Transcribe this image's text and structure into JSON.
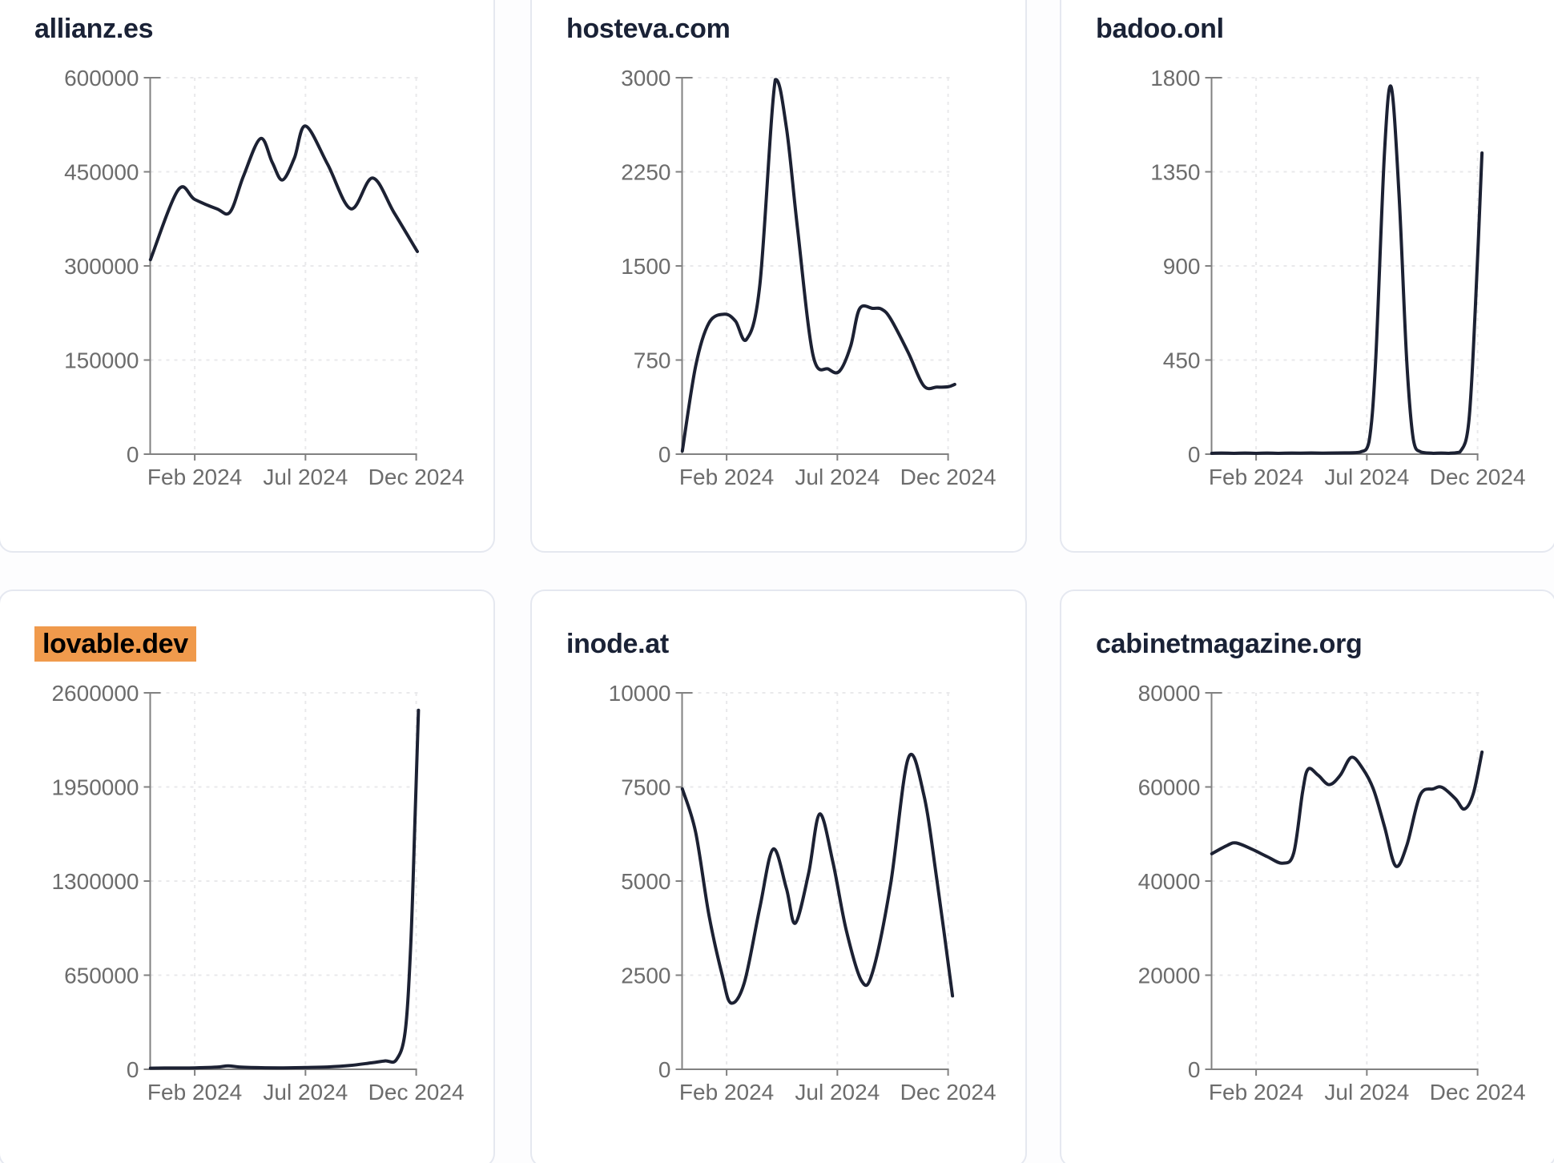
{
  "page": {
    "x_axis_tick_labels": [
      "Feb 2024",
      "Jul 2024",
      "Dec 2024"
    ],
    "x_domain_note": "months: 0 = curve start (late Dec 2023), 2 = Feb 2024 tick, 7 = Jul 2024 tick, 12 = Dec 2024 tick"
  },
  "colors": {
    "page_background": "#fdfdfe",
    "card_background": "#ffffff",
    "card_border": "#e5e8f0",
    "title_text": "#1a2236",
    "highlight_background": "#f09a4c",
    "highlight_text": "#000000",
    "line": "#1c2133",
    "axis": "#818181",
    "tick_label": "#6c6c6c",
    "gridline": "#e9e9eb"
  },
  "chart_data": [
    {
      "type": "line",
      "title": "allianz.es",
      "highlighted": false,
      "legend": "none",
      "grid": "dashed",
      "x_tick_labels": [
        "Feb 2024",
        "Jul 2024",
        "Dec 2024"
      ],
      "x_tick_months": [
        2,
        7,
        12
      ],
      "y_tick_labels": [
        "0",
        "150000",
        "300000",
        "450000",
        "600000"
      ],
      "y_tick_step": 150000,
      "ylim": [
        0,
        600000
      ],
      "points": [
        [
          0,
          310000
        ],
        [
          1.25,
          421000
        ],
        [
          2,
          406000
        ],
        [
          3,
          391000
        ],
        [
          3.6,
          386000
        ],
        [
          4.2,
          443000
        ],
        [
          4.97,
          503000
        ],
        [
          5.5,
          465000
        ],
        [
          5.96,
          437000
        ],
        [
          6.5,
          472000
        ],
        [
          7,
          523000
        ],
        [
          8,
          462000
        ],
        [
          9.05,
          391000
        ],
        [
          10.03,
          440000
        ],
        [
          11,
          385000
        ],
        [
          12.05,
          323000
        ]
      ]
    },
    {
      "type": "line",
      "title": "hosteva.com",
      "highlighted": false,
      "legend": "none",
      "grid": "dashed",
      "x_tick_labels": [
        "Feb 2024",
        "Jul 2024",
        "Dec 2024"
      ],
      "x_tick_months": [
        2,
        7,
        12
      ],
      "y_tick_labels": [
        "0",
        "750",
        "1500",
        "2250",
        "3000"
      ],
      "y_tick_step": 750,
      "ylim": [
        0,
        3000
      ],
      "points": [
        [
          0,
          25
        ],
        [
          0.6,
          700
        ],
        [
          1.2,
          1045
        ],
        [
          1.9,
          1115
        ],
        [
          2.4,
          1060
        ],
        [
          2.9,
          915
        ],
        [
          3.5,
          1350
        ],
        [
          4.2,
          2985
        ],
        [
          4.7,
          2600
        ],
        [
          5.2,
          1800
        ],
        [
          5.9,
          790
        ],
        [
          6.6,
          678
        ],
        [
          7.1,
          662
        ],
        [
          7.6,
          860
        ],
        [
          8.0,
          1158
        ],
        [
          8.6,
          1162
        ],
        [
          9.0,
          1155
        ],
        [
          9.4,
          1080
        ],
        [
          10.2,
          810
        ],
        [
          10.9,
          545
        ],
        [
          11.5,
          535
        ],
        [
          12.0,
          537
        ],
        [
          12.3,
          556
        ]
      ]
    },
    {
      "type": "line",
      "title": "badoo.onl",
      "highlighted": false,
      "legend": "none",
      "grid": "dashed",
      "x_tick_labels": [
        "Feb 2024",
        "Jul 2024",
        "Dec 2024"
      ],
      "x_tick_months": [
        2,
        7,
        12
      ],
      "y_tick_labels": [
        "0",
        "450",
        "900",
        "1350",
        "1800"
      ],
      "y_tick_step": 450,
      "ylim": [
        0,
        1800
      ],
      "points": [
        [
          0,
          4
        ],
        [
          1,
          4
        ],
        [
          2,
          4
        ],
        [
          3,
          4
        ],
        [
          4,
          5
        ],
        [
          5,
          5
        ],
        [
          6,
          6
        ],
        [
          6.7,
          10
        ],
        [
          7.1,
          60
        ],
        [
          7.4,
          450
        ],
        [
          7.8,
          1450
        ],
        [
          8.1,
          1755
        ],
        [
          8.45,
          1250
        ],
        [
          8.8,
          450
        ],
        [
          9.1,
          70
        ],
        [
          9.45,
          10
        ],
        [
          10,
          4
        ],
        [
          10.7,
          4
        ],
        [
          11.2,
          10
        ],
        [
          11.6,
          150
        ],
        [
          11.9,
          700
        ],
        [
          12.2,
          1440
        ]
      ]
    },
    {
      "type": "line",
      "title": "lovable.dev",
      "highlighted": true,
      "legend": "none",
      "grid": "dashed",
      "x_tick_labels": [
        "Feb 2024",
        "Jul 2024",
        "Dec 2024"
      ],
      "x_tick_months": [
        2,
        7,
        12
      ],
      "y_tick_labels": [
        "0",
        "650000",
        "1300000",
        "1950000",
        "2600000"
      ],
      "y_tick_step": 650000,
      "ylim": [
        0,
        2600000
      ],
      "points": [
        [
          0,
          8000
        ],
        [
          1,
          9000
        ],
        [
          2,
          10000
        ],
        [
          3,
          15000
        ],
        [
          3.5,
          24000
        ],
        [
          4,
          16000
        ],
        [
          5,
          11000
        ],
        [
          6,
          10000
        ],
        [
          7,
          12000
        ],
        [
          8,
          16000
        ],
        [
          9,
          26000
        ],
        [
          10,
          45000
        ],
        [
          10.6,
          58000
        ],
        [
          11.1,
          65000
        ],
        [
          11.5,
          260000
        ],
        [
          11.75,
          850000
        ],
        [
          11.95,
          1750000
        ],
        [
          12.1,
          2480000
        ]
      ]
    },
    {
      "type": "line",
      "title": "inode.at",
      "highlighted": false,
      "legend": "none",
      "grid": "dashed",
      "x_tick_labels": [
        "Feb 2024",
        "Jul 2024",
        "Dec 2024"
      ],
      "x_tick_months": [
        2,
        7,
        12
      ],
      "y_tick_labels": [
        "0",
        "2500",
        "5000",
        "7500",
        "10000"
      ],
      "y_tick_step": 2500,
      "ylim": [
        0,
        10000
      ],
      "points": [
        [
          0,
          7450
        ],
        [
          0.6,
          6300
        ],
        [
          1.2,
          4100
        ],
        [
          1.8,
          2500
        ],
        [
          2.2,
          1760
        ],
        [
          2.8,
          2300
        ],
        [
          3.5,
          4300
        ],
        [
          4.1,
          5850
        ],
        [
          4.7,
          4800
        ],
        [
          5.1,
          3880
        ],
        [
          5.7,
          5200
        ],
        [
          6.2,
          6780
        ],
        [
          6.8,
          5500
        ],
        [
          7.4,
          3700
        ],
        [
          8.1,
          2340
        ],
        [
          8.6,
          2600
        ],
        [
          9.4,
          4900
        ],
        [
          10.2,
          8260
        ],
        [
          10.9,
          7300
        ],
        [
          11.5,
          5000
        ],
        [
          12.2,
          1950
        ]
      ]
    },
    {
      "type": "line",
      "title": "cabinetmagazine.org",
      "highlighted": false,
      "legend": "none",
      "grid": "dashed",
      "x_tick_labels": [
        "Feb 2024",
        "Jul 2024",
        "Dec 2024"
      ],
      "x_tick_months": [
        2,
        7,
        12
      ],
      "y_tick_labels": [
        "0",
        "20000",
        "40000",
        "60000",
        "80000"
      ],
      "y_tick_step": 20000,
      "ylim": [
        0,
        80000
      ],
      "points": [
        [
          0,
          45800
        ],
        [
          0.7,
          47600
        ],
        [
          1.1,
          48100
        ],
        [
          1.8,
          46800
        ],
        [
          2.5,
          45200
        ],
        [
          3.2,
          43800
        ],
        [
          3.7,
          46000
        ],
        [
          4.1,
          59000
        ],
        [
          4.35,
          63800
        ],
        [
          4.8,
          62500
        ],
        [
          5.3,
          60500
        ],
        [
          5.8,
          62500
        ],
        [
          6.3,
          66300
        ],
        [
          6.8,
          64000
        ],
        [
          7.3,
          59500
        ],
        [
          7.8,
          51500
        ],
        [
          8.3,
          43200
        ],
        [
          8.8,
          47500
        ],
        [
          9.4,
          58200
        ],
        [
          10,
          59600
        ],
        [
          10.4,
          59900
        ],
        [
          11,
          57500
        ],
        [
          11.4,
          55300
        ],
        [
          11.8,
          58500
        ],
        [
          12.2,
          67400
        ]
      ]
    }
  ]
}
